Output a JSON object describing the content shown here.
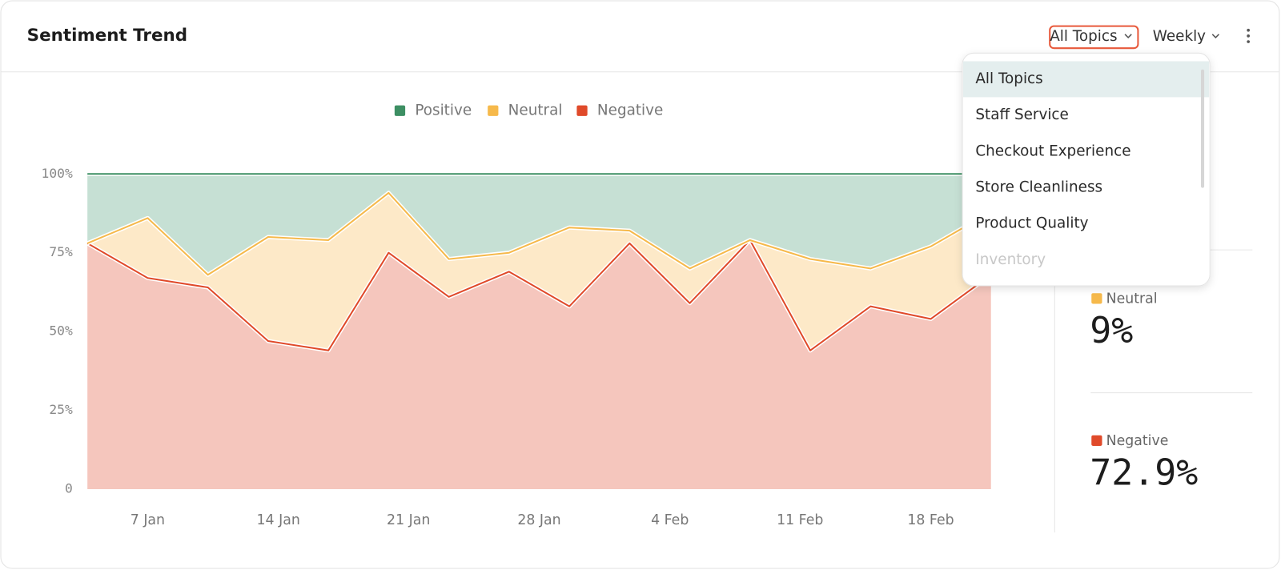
{
  "header": {
    "title": "Sentiment Trend",
    "topic_button": "All Topics",
    "period_button": "Weekly"
  },
  "dropdown": {
    "items": [
      "All Topics",
      "Staff Service",
      "Checkout Experience",
      "Store Cleanliness",
      "Product Quality",
      "Inventory"
    ]
  },
  "stats": [
    {
      "value": "%"
    },
    {
      "label": "Neutral",
      "value": "9%"
    },
    {
      "label": "Negative",
      "value": "72.9%"
    }
  ],
  "chart_data": {
    "type": "stacked_area",
    "x": [
      0,
      1,
      2,
      3,
      4,
      5,
      6,
      7,
      8,
      9,
      10,
      11,
      12,
      13,
      14,
      15
    ],
    "xlim": [
      0,
      15
    ],
    "xticks": [
      {
        "value": 1,
        "label": "7 Jan"
      },
      {
        "value": 3.17,
        "label": "14 Jan"
      },
      {
        "value": 5.33,
        "label": "21 Jan"
      },
      {
        "value": 7.5,
        "label": "28 Jan"
      },
      {
        "value": 9.67,
        "label": "4 Feb"
      },
      {
        "value": 11.83,
        "label": "11 Feb"
      },
      {
        "value": 14,
        "label": "18 Feb"
      }
    ],
    "ylim": [
      0,
      100
    ],
    "yticks": [
      0,
      {
        "value": 25,
        "label": "25%"
      },
      {
        "value": 50,
        "label": "50%"
      },
      {
        "value": 75,
        "label": "75%"
      },
      {
        "value": 100,
        "label": "100%"
      }
    ],
    "series": [
      {
        "name": "Negative",
        "color": "#e04a2a",
        "fill": "#f5c6bd",
        "values": [
          78,
          67,
          64,
          47,
          44,
          75,
          61,
          69,
          58,
          78,
          59,
          79,
          44,
          58,
          54,
          68
        ]
      },
      {
        "name": "Neutral",
        "color": "#f6b94b",
        "fill": "#fde9c8",
        "values": [
          0,
          19,
          4,
          33,
          35,
          19,
          12,
          6,
          25,
          4,
          11,
          0,
          29,
          12,
          23,
          20
        ]
      },
      {
        "name": "Positive",
        "color": "#3d8f63",
        "fill": "#c6e0d4",
        "values": [
          22,
          14,
          32,
          20,
          21,
          6,
          27,
          25,
          17,
          18,
          30,
          21,
          27,
          30,
          23,
          12
        ]
      }
    ],
    "legend_order": [
      2,
      1,
      0
    ]
  }
}
